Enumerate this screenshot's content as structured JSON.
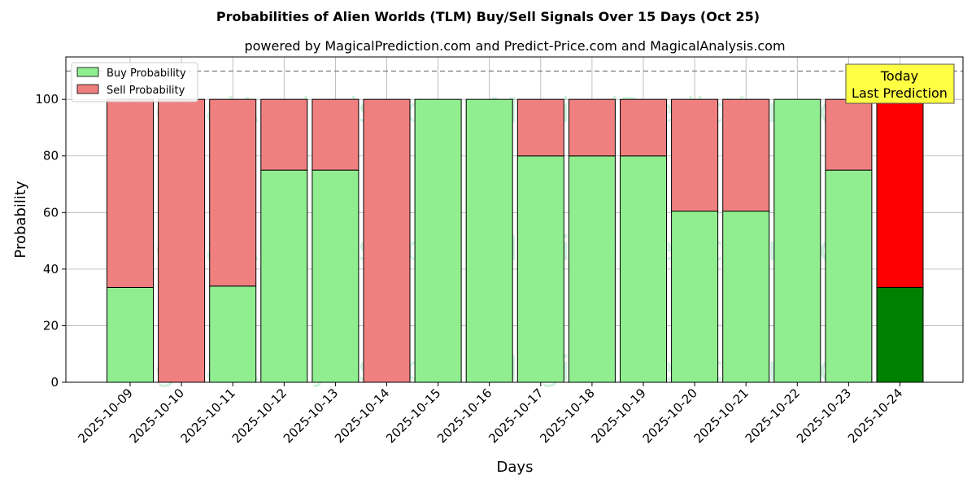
{
  "chart_data": {
    "type": "bar",
    "stacked": true,
    "title": "Probabilities of Alien Worlds (TLM) Buy/Sell Signals Over 15 Days (Oct 25)",
    "subtitle": "powered by MagicalPrediction.com and Predict-Price.com and MagicalAnalysis.com",
    "xlabel": "Days",
    "ylabel": "Probability",
    "ylim": [
      0,
      115
    ],
    "yticks": [
      0,
      20,
      40,
      60,
      80,
      100
    ],
    "threshold_line": 110,
    "grid": true,
    "legend_position": "top-left",
    "categories": [
      "2025-10-09",
      "2025-10-10",
      "2025-10-11",
      "2025-10-12",
      "2025-10-13",
      "2025-10-14",
      "2025-10-15",
      "2025-10-16",
      "2025-10-17",
      "2025-10-18",
      "2025-10-19",
      "2025-10-20",
      "2025-10-21",
      "2025-10-22",
      "2025-10-23",
      "2025-10-24"
    ],
    "series": [
      {
        "name": "Buy Probability",
        "color": "#90ee90",
        "values": [
          33.5,
          0,
          34,
          75,
          75,
          0,
          100,
          100,
          80,
          80,
          80,
          60.5,
          60.5,
          100,
          75,
          33.5
        ]
      },
      {
        "name": "Sell Probability",
        "color": "#f08080",
        "values": [
          66.5,
          100,
          66,
          25,
          25,
          100,
          0,
          0,
          20,
          20,
          20,
          39.5,
          39.5,
          0,
          25,
          66.5
        ]
      }
    ],
    "highlight": {
      "category": "2025-10-24",
      "buy_color": "#008000",
      "sell_color": "#ff0000"
    },
    "annotation": {
      "line1": "Today",
      "line2": "Last Prediction",
      "color": "#ffff44"
    },
    "watermarks": [
      "MagicalAnalysis.com",
      "MagicalPrediction.com"
    ]
  }
}
